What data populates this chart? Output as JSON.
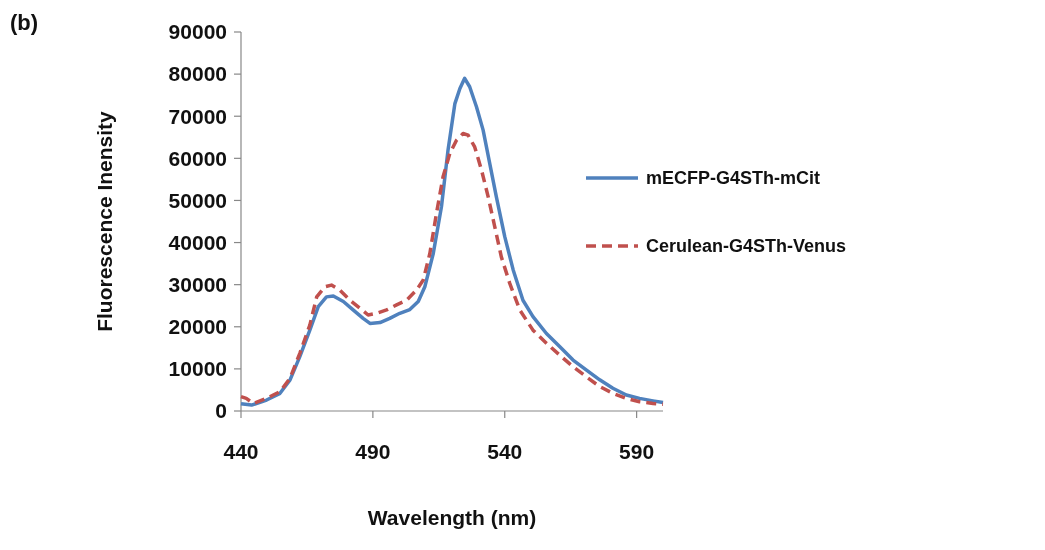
{
  "chart_data": {
    "type": "line",
    "xlabel": "Wavelength (nm)",
    "ylabel": "Fluorescence Inensity",
    "annotations": [
      "(b)"
    ],
    "xlim": [
      440,
      600
    ],
    "xticks": [
      440,
      490,
      540,
      590
    ],
    "ylim": [
      0,
      90000
    ],
    "yticks": [
      0,
      10000,
      20000,
      30000,
      40000,
      50000,
      60000,
      70000,
      80000,
      90000
    ],
    "grid": false,
    "legend": "right",
    "series": [
      {
        "name": "mECFP-G4STh-mCit",
        "color": "#4f81bd",
        "line_style": "solid",
        "x": [
          440,
          444,
          449.7,
          454.8,
          458.6,
          462.3,
          466.1,
          469.3,
          472.4,
          475,
          478.8,
          482.5,
          486.3,
          488.9,
          492.7,
          496.4,
          500.2,
          504,
          507.2,
          509.7,
          512.9,
          516,
          518.5,
          521.1,
          523,
          524.8,
          526.7,
          529.3,
          531.8,
          534.3,
          536.8,
          540,
          543.2,
          546.9,
          550.7,
          555.8,
          560.8,
          565.9,
          571,
          576,
          581,
          586.1,
          591.1,
          596.2,
          600
        ],
        "values": [
          1700,
          1400,
          2600,
          4200,
          7400,
          12900,
          19200,
          24800,
          27100,
          27300,
          26000,
          24000,
          22000,
          20800,
          21000,
          22000,
          23200,
          24100,
          26000,
          29500,
          37400,
          48500,
          62000,
          73000,
          76600,
          79000,
          77000,
          72200,
          66700,
          58800,
          50900,
          41400,
          33500,
          26300,
          22400,
          18400,
          15300,
          12100,
          9700,
          7400,
          5400,
          3800,
          3000,
          2400,
          2000
        ]
      },
      {
        "name": "Cerulean-G4STh-Venus",
        "color": "#c0504d",
        "line_style": "dashed",
        "x": [
          440,
          442,
          444.7,
          449.7,
          454.8,
          458.6,
          462.3,
          466.1,
          468.7,
          471.8,
          474.3,
          477.5,
          481.3,
          485.1,
          488.2,
          491.4,
          495.2,
          499,
          502.8,
          506.5,
          509.1,
          511.6,
          514.1,
          516.6,
          519.2,
          521.7,
          524.2,
          526.1,
          528.6,
          531.2,
          533.7,
          536.2,
          538.7,
          541.9,
          545.7,
          550.7,
          555.8,
          560.8,
          565.9,
          571,
          576,
          581,
          586.1,
          591.1,
          596.2,
          600
        ],
        "values": [
          3400,
          3000,
          1800,
          3000,
          4600,
          7800,
          13700,
          20400,
          27100,
          29500,
          29900,
          28700,
          26300,
          24400,
          22800,
          23200,
          24000,
          25200,
          26300,
          28700,
          31100,
          37400,
          46900,
          55600,
          61200,
          64300,
          65900,
          65500,
          62700,
          57200,
          50900,
          43800,
          36600,
          30300,
          24000,
          19200,
          16100,
          13300,
          10500,
          8100,
          5800,
          4200,
          3000,
          2200,
          1800,
          1600
        ]
      }
    ]
  }
}
